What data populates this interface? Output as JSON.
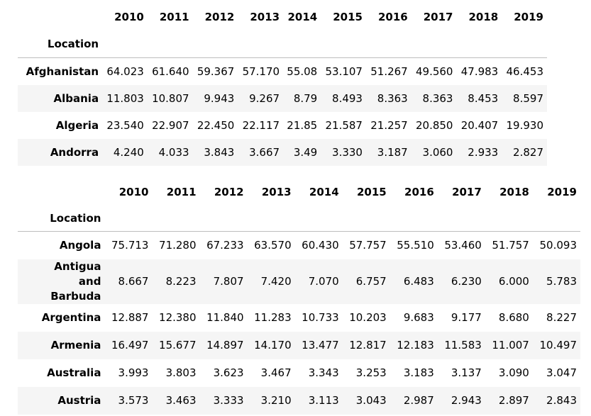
{
  "table1": {
    "index_name": "Location",
    "columns": [
      "2010",
      "2011",
      "2012",
      "2013",
      "2014",
      "2015",
      "2016",
      "2017",
      "2018",
      "2019"
    ],
    "rows": [
      {
        "label": "Afghanistan",
        "values": [
          "64.023",
          "61.640",
          "59.367",
          "57.170",
          "55.08",
          "53.107",
          "51.267",
          "49.560",
          "47.983",
          "46.453"
        ]
      },
      {
        "label": "Albania",
        "values": [
          "11.803",
          "10.807",
          "9.943",
          "9.267",
          "8.79",
          "8.493",
          "8.363",
          "8.363",
          "8.453",
          "8.597"
        ]
      },
      {
        "label": "Algeria",
        "values": [
          "23.540",
          "22.907",
          "22.450",
          "22.117",
          "21.85",
          "21.587",
          "21.257",
          "20.850",
          "20.407",
          "19.930"
        ]
      },
      {
        "label": "Andorra",
        "values": [
          "4.240",
          "4.033",
          "3.843",
          "3.667",
          "3.49",
          "3.330",
          "3.187",
          "3.060",
          "2.933",
          "2.827"
        ]
      }
    ]
  },
  "table2": {
    "index_name": "Location",
    "columns": [
      "2010",
      "2011",
      "2012",
      "2013",
      "2014",
      "2015",
      "2016",
      "2017",
      "2018",
      "2019"
    ],
    "rows": [
      {
        "label": "Angola",
        "values": [
          "75.713",
          "71.280",
          "67.233",
          "63.570",
          "60.430",
          "57.757",
          "55.510",
          "53.460",
          "51.757",
          "50.093"
        ]
      },
      {
        "label": "Antigua and Barbuda",
        "values": [
          "8.667",
          "8.223",
          "7.807",
          "7.420",
          "7.070",
          "6.757",
          "6.483",
          "6.230",
          "6.000",
          "5.783"
        ]
      },
      {
        "label": "Argentina",
        "values": [
          "12.887",
          "12.380",
          "11.840",
          "11.283",
          "10.733",
          "10.203",
          "9.683",
          "9.177",
          "8.680",
          "8.227"
        ]
      },
      {
        "label": "Armenia",
        "values": [
          "16.497",
          "15.677",
          "14.897",
          "14.170",
          "13.477",
          "12.817",
          "12.183",
          "11.583",
          "11.007",
          "10.497"
        ]
      },
      {
        "label": "Australia",
        "values": [
          "3.993",
          "3.803",
          "3.623",
          "3.467",
          "3.343",
          "3.253",
          "3.183",
          "3.137",
          "3.090",
          "3.047"
        ]
      },
      {
        "label": "Austria",
        "values": [
          "3.573",
          "3.463",
          "3.333",
          "3.210",
          "3.113",
          "3.043",
          "2.987",
          "2.943",
          "2.897",
          "2.843"
        ]
      }
    ]
  }
}
